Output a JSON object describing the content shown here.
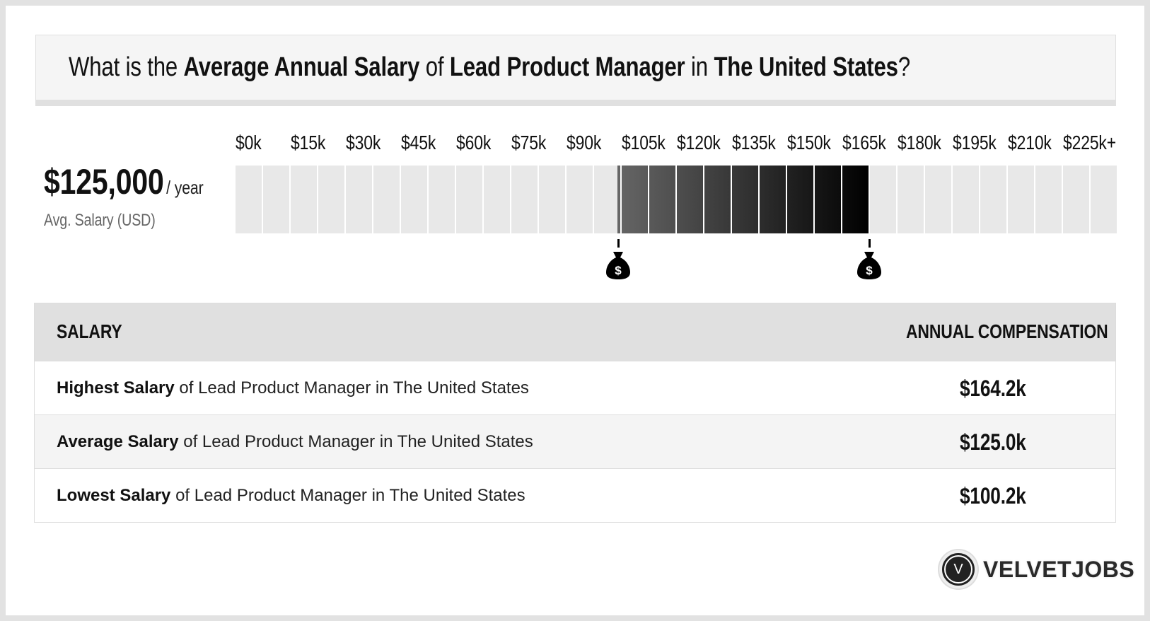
{
  "header": {
    "q1": "What is the ",
    "k1": "Average Annual Salary",
    "q2": " of ",
    "k2": "Lead Product Manager",
    "q3": " in ",
    "k3": "The United States",
    "q4": "?"
  },
  "summary": {
    "value": "$125,000",
    "unit": "/ year",
    "label": "Avg. Salary (USD)"
  },
  "scale": {
    "ticks": [
      "$0k",
      "$15k",
      "$30k",
      "$45k",
      "$60k",
      "$75k",
      "$90k",
      "$105k",
      "$120k",
      "$135k",
      "$150k",
      "$165k",
      "$180k",
      "$195k",
      "$210k",
      "$225k+"
    ],
    "range_low": 100.2,
    "range_high": 164.2,
    "fill_colors": [
      "#666666",
      "#000000"
    ],
    "markers": [
      "money-bag-icon",
      "money-bag-icon"
    ]
  },
  "table": {
    "headers": [
      "SALARY",
      "ANNUAL COMPENSATION"
    ],
    "rows": [
      {
        "bold": "Highest Salary",
        "rest": " of Lead Product Manager in The United States",
        "value": "$164.2k"
      },
      {
        "bold": "Average Salary",
        "rest": " of Lead Product Manager in The United States",
        "value": "$125.0k"
      },
      {
        "bold": "Lowest Salary",
        "rest": " of Lead Product Manager in The United States",
        "value": "$100.2k"
      }
    ]
  },
  "logo": {
    "letter": "V",
    "text": "VELVETJOBS"
  }
}
